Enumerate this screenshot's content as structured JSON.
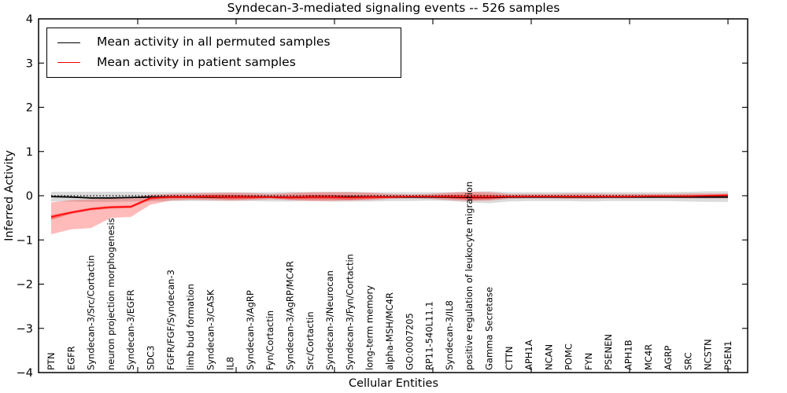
{
  "chart_data": {
    "type": "line",
    "title": "Syndecan-3-mediated signaling events -- 526 samples",
    "xlabel": "Cellular Entities",
    "ylabel": "Inferred Activity",
    "ylim": [
      -4,
      4
    ],
    "yticks": [
      -4,
      -3,
      -2,
      -1,
      0,
      1,
      2,
      3,
      4
    ],
    "grid": false,
    "legend_position": "upper-left",
    "categories": [
      "PTN",
      "EGFR",
      "Syndecan-3/Src/Cortactin",
      "neuron projection morphogenesis",
      "Syndecan-3/EGFR",
      "SDC3",
      "FGFR/FGF/Syndecan-3",
      "limb bud formation",
      "Syndecan-3/CASK",
      "IL8",
      "Syndecan-3/AgRP",
      "Fyn/Cortactin",
      "Syndecan-3/AgRP/MC4R",
      "Src/Cortactin",
      "Syndecan-3/Neurocan",
      "Syndecan-3/Fyn/Cortactin",
      "long-term memory",
      "alpha-MSH/MC4R",
      "GO:0007205",
      "RP11-540L11.1",
      "Syndecan-3/IL8",
      "positive regulation of leukocyte migration",
      "Gamma Secretase",
      "CTTN",
      "APH1A",
      "NCAN",
      "POMC",
      "FYN",
      "PSENEN",
      "APH1B",
      "MC4R",
      "AGRP",
      "SRC",
      "NCSTN",
      "PSEN1"
    ],
    "series": [
      {
        "key": "permuted-mean-line",
        "name": "Mean activity in all permuted samples",
        "color": "#000000",
        "width": 1.8,
        "values": [
          -0.02,
          -0.03,
          -0.05,
          -0.05,
          -0.04,
          -0.03,
          -0.03,
          -0.03,
          -0.03,
          -0.03,
          -0.03,
          -0.03,
          -0.04,
          -0.03,
          -0.03,
          -0.03,
          -0.03,
          -0.03,
          -0.03,
          -0.03,
          -0.03,
          -0.04,
          -0.04,
          -0.03,
          -0.03,
          -0.03,
          -0.03,
          -0.03,
          -0.03,
          -0.03,
          -0.03,
          -0.03,
          -0.03,
          -0.03,
          -0.03
        ]
      },
      {
        "key": "patient-mean-line",
        "name": "Mean activity in patient samples",
        "color": "#ff0000",
        "width": 1.6,
        "values": [
          -0.48,
          -0.38,
          -0.3,
          -0.26,
          -0.25,
          -0.05,
          -0.03,
          -0.03,
          -0.02,
          -0.03,
          -0.03,
          -0.03,
          -0.04,
          -0.03,
          -0.03,
          -0.04,
          -0.03,
          -0.03,
          -0.02,
          -0.02,
          -0.02,
          -0.03,
          -0.03,
          -0.02,
          -0.02,
          -0.02,
          -0.02,
          -0.02,
          -0.02,
          -0.02,
          -0.01,
          -0.01,
          -0.01,
          0.0,
          0.01
        ]
      }
    ],
    "bands": [
      {
        "key": "permuted-activity-range",
        "color": "#000000",
        "opacity": 0.14,
        "low": [
          -0.13,
          -0.13,
          -0.14,
          -0.14,
          -0.13,
          -0.13,
          -0.12,
          -0.12,
          -0.12,
          -0.12,
          -0.12,
          -0.13,
          -0.13,
          -0.12,
          -0.13,
          -0.13,
          -0.13,
          -0.12,
          -0.12,
          -0.11,
          -0.12,
          -0.15,
          -0.17,
          -0.13,
          -0.12,
          -0.12,
          -0.12,
          -0.13,
          -0.12,
          -0.12,
          -0.12,
          -0.12,
          -0.13,
          -0.14,
          -0.14
        ],
        "high": [
          0.09,
          0.09,
          0.09,
          0.09,
          0.09,
          0.08,
          0.08,
          0.08,
          0.08,
          0.08,
          0.08,
          0.08,
          0.09,
          0.08,
          0.09,
          0.09,
          0.08,
          0.08,
          0.08,
          0.08,
          0.08,
          0.09,
          0.1,
          0.08,
          0.08,
          0.08,
          0.08,
          0.08,
          0.08,
          0.08,
          0.08,
          0.08,
          0.09,
          0.1,
          0.1
        ]
      },
      {
        "key": "patient-activity-range",
        "color": "#ff0000",
        "opacity": 0.27,
        "low": [
          -0.87,
          -0.76,
          -0.73,
          -0.5,
          -0.48,
          -0.2,
          -0.11,
          -0.09,
          -0.1,
          -0.11,
          -0.1,
          -0.08,
          -0.1,
          -0.12,
          -0.12,
          -0.11,
          -0.1,
          -0.07,
          -0.06,
          -0.07,
          -0.1,
          -0.12,
          -0.11,
          -0.07,
          -0.06,
          -0.06,
          -0.07,
          -0.07,
          -0.06,
          -0.06,
          -0.05,
          -0.05,
          -0.06,
          -0.06,
          -0.06
        ],
        "high": [
          -0.15,
          -0.1,
          -0.08,
          -0.06,
          -0.05,
          0.02,
          0.04,
          0.05,
          0.06,
          0.07,
          0.06,
          0.04,
          0.06,
          0.08,
          0.08,
          0.08,
          0.07,
          0.04,
          0.03,
          0.04,
          0.07,
          0.09,
          0.08,
          0.04,
          0.04,
          0.04,
          0.05,
          0.05,
          0.04,
          0.04,
          0.04,
          0.04,
          0.05,
          0.05,
          0.05
        ]
      },
      {
        "key": "patient-activity-core",
        "color": "#ff0000",
        "opacity": 0.4,
        "low": [
          -0.54,
          -0.41,
          -0.33,
          -0.29,
          -0.28,
          -0.09,
          -0.06,
          -0.06,
          -0.06,
          -0.08,
          -0.07,
          -0.05,
          -0.08,
          -0.08,
          -0.08,
          -0.09,
          -0.07,
          -0.05,
          -0.04,
          -0.04,
          -0.06,
          -0.09,
          -0.08,
          -0.04,
          -0.04,
          -0.04,
          -0.04,
          -0.04,
          -0.04,
          -0.04,
          -0.02,
          -0.02,
          -0.03,
          -0.02,
          -0.01
        ],
        "high": [
          -0.44,
          -0.35,
          -0.27,
          -0.23,
          -0.22,
          -0.03,
          0.0,
          0.0,
          0.02,
          0.02,
          0.01,
          -0.01,
          0.0,
          0.02,
          0.02,
          0.01,
          0.01,
          -0.01,
          0.0,
          0.0,
          0.02,
          0.03,
          0.02,
          0.0,
          0.0,
          0.0,
          0.0,
          0.0,
          0.0,
          0.0,
          0.0,
          0.0,
          0.01,
          0.02,
          0.03
        ]
      }
    ],
    "reference_line": {
      "y": 0,
      "style": "dotted",
      "color": "#000000"
    }
  }
}
